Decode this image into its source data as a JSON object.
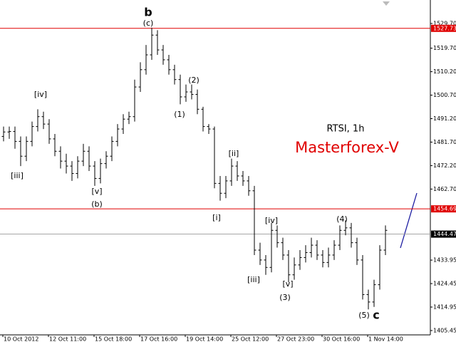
{
  "chart_data": {
    "type": "ohlc",
    "title": "RTSI, 1h",
    "subtitle": "Masterforex-V",
    "series": [
      {
        "name": "RTSI",
        "color": "#000000",
        "open": [
          1484,
          1485.8,
          1486,
          1482,
          1476,
          1482,
          1488,
          1492,
          1489,
          1483,
          1478,
          1474,
          1472,
          1469,
          1474,
          1478,
          1472,
          1467,
          1473,
          1476,
          1482,
          1487,
          1491,
          1492,
          1504,
          1511,
          1517,
          1525,
          1519,
          1515,
          1511,
          1507,
          1500,
          1502,
          1501,
          1495,
          1488,
          1487,
          1465,
          1461,
          1466,
          1472,
          1468,
          1466,
          1462,
          1438,
          1434,
          1431,
          1446,
          1441,
          1436,
          1428,
          1432,
          1435,
          1437,
          1440,
          1436,
          1433,
          1436,
          1440,
          1446,
          1447,
          1441,
          1434,
          1420,
          1417,
          1424,
          1438
        ],
        "high": [
          1488,
          1488,
          1488,
          1484,
          1484,
          1490,
          1495,
          1494,
          1491,
          1485,
          1480,
          1477,
          1474,
          1476,
          1481,
          1480,
          1474,
          1475,
          1478,
          1484,
          1489,
          1493,
          1494,
          1507,
          1514,
          1521,
          1528,
          1527,
          1521,
          1517,
          1513,
          1509,
          1505,
          1505,
          1503,
          1496,
          1489,
          1488,
          1468,
          1468,
          1475,
          1474,
          1470,
          1468,
          1464,
          1441,
          1436,
          1449,
          1448,
          1443,
          1438,
          1435,
          1438,
          1440,
          1443,
          1442,
          1438,
          1439,
          1442,
          1448,
          1450,
          1449,
          1443,
          1436,
          1422,
          1426,
          1440,
          1448
        ],
        "low": [
          1482,
          1483,
          1479,
          1472,
          1474,
          1480,
          1486,
          1487,
          1481,
          1476,
          1471,
          1469,
          1466,
          1467,
          1472,
          1470,
          1464,
          1465,
          1471,
          1474,
          1480,
          1485,
          1489,
          1490,
          1502,
          1509,
          1515,
          1517,
          1513,
          1509,
          1505,
          1497,
          1498,
          1499,
          1493,
          1486,
          1485,
          1463,
          1458,
          1459,
          1464,
          1466,
          1464,
          1460,
          1436,
          1432,
          1428,
          1429,
          1439,
          1434,
          1425,
          1426,
          1430,
          1433,
          1435,
          1434,
          1431,
          1431,
          1434,
          1438,
          1444,
          1439,
          1432,
          1418,
          1414,
          1415,
          1422,
          1436
        ],
        "close": [
          1485.8,
          1486,
          1482,
          1476,
          1482,
          1488,
          1492,
          1489,
          1483,
          1478,
          1474,
          1472,
          1469,
          1474,
          1478,
          1472,
          1467,
          1473,
          1476,
          1482,
          1487,
          1491,
          1492,
          1504,
          1511,
          1517,
          1525,
          1519,
          1515,
          1511,
          1507,
          1500,
          1502,
          1501,
          1495,
          1488,
          1487,
          1465,
          1461,
          1466,
          1472,
          1468,
          1466,
          1462,
          1438,
          1434,
          1431,
          1446,
          1441,
          1436,
          1428,
          1432,
          1435,
          1437,
          1440,
          1436,
          1433,
          1436,
          1440,
          1446,
          1447,
          1441,
          1434,
          1420,
          1417,
          1424,
          1438,
          1446
        ]
      }
    ],
    "ylim": [
      1403.7,
      1539.2
    ],
    "yticks": [
      {
        "value": 1529.7,
        "label": "1529.70"
      },
      {
        "value": 1519.7,
        "label": "1519.70"
      },
      {
        "value": 1510.2,
        "label": "1510.20"
      },
      {
        "value": 1500.7,
        "label": "1500.70"
      },
      {
        "value": 1491.2,
        "label": "1491.20"
      },
      {
        "value": 1481.7,
        "label": "1481.70"
      },
      {
        "value": 1472.2,
        "label": "1472.20"
      },
      {
        "value": 1462.7,
        "label": "1462.70"
      },
      {
        "value": 1433.95,
        "label": "1433.95"
      },
      {
        "value": 1424.45,
        "label": "1424.45"
      },
      {
        "value": 1414.95,
        "label": "1414.95"
      },
      {
        "value": 1405.45,
        "label": "1405.45"
      }
    ],
    "xtick_labels": [
      "10 Oct 2012",
      "12 Oct 11:00",
      "15 Oct 18:00",
      "17 Oct 16:00",
      "19 Oct 14:00",
      "25 Oct 12:00",
      "27 Oct 23:00",
      "30 Oct 16:00",
      "1 Nov 14:00"
    ],
    "levels": [
      {
        "value": 1527.73,
        "label": "1527.73",
        "color": "#e00000"
      },
      {
        "value": 1454.69,
        "label": "1454.69",
        "color": "#e00000"
      }
    ],
    "current_price": {
      "value": 1444.47,
      "label": "1444.47"
    },
    "annotations": [
      "b",
      "(c)",
      "[iv]",
      "[iii]",
      "[v]",
      "(b)",
      "(2)",
      "(1)",
      "[ii]",
      "[i]",
      "[iv]",
      "[iii]",
      "[v]",
      "(3)",
      "(4)",
      "(5)",
      "c"
    ]
  }
}
